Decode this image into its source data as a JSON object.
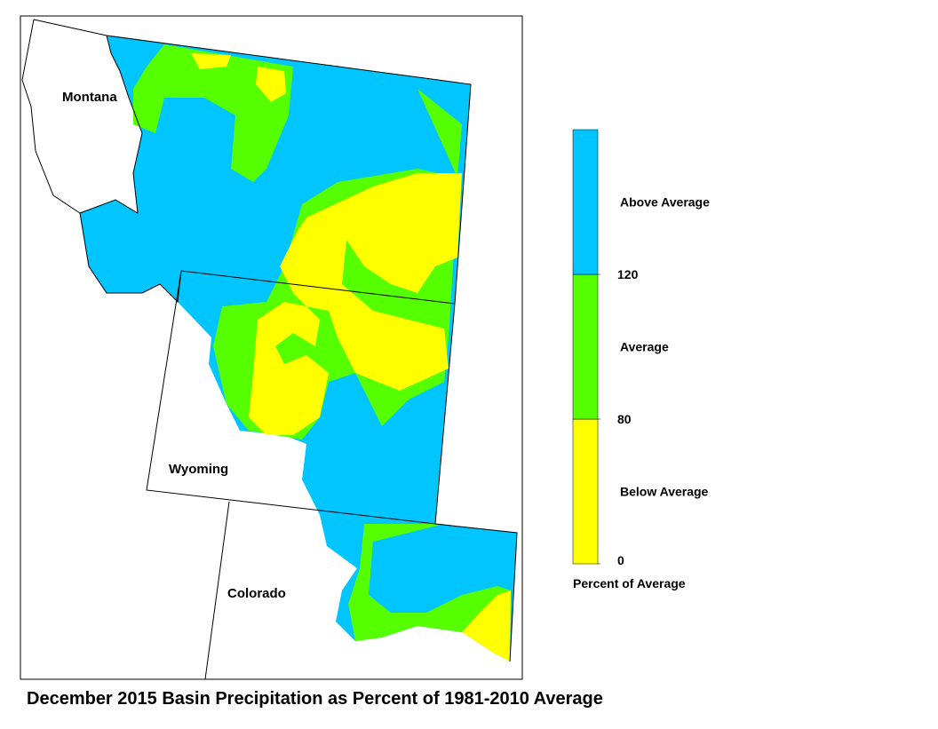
{
  "title": "December 2015 Basin Precipitation as Percent of 1981-2010 Average",
  "map": {
    "labels": [
      "Montana",
      "Wyoming",
      "Colorado"
    ]
  },
  "legend": {
    "title": "Percent of Average",
    "bands": [
      {
        "label": "Below Average",
        "color": "#ffff00"
      },
      {
        "label": "Average",
        "color": "#55ff00"
      },
      {
        "label": "Above Average",
        "color": "#00c5ff"
      }
    ],
    "ticks": [
      0,
      80,
      120
    ]
  }
}
